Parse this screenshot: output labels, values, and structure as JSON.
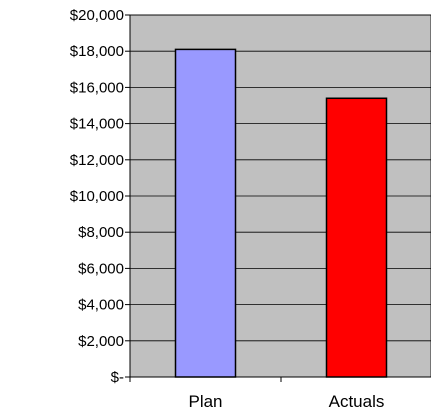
{
  "chart_data": {
    "type": "bar",
    "title": "",
    "xlabel": "",
    "ylabel": "",
    "categories": [
      "Plan",
      "Actuals"
    ],
    "values": [
      18100,
      15400
    ],
    "ylim": [
      0,
      20000
    ],
    "y_ticks": [
      0,
      2000,
      4000,
      6000,
      8000,
      10000,
      12000,
      14000,
      16000,
      18000,
      20000
    ],
    "y_tick_labels": [
      "$-",
      "$2,000",
      "$4,000",
      "$6,000",
      "$8,000",
      "$10,000",
      "$12,000",
      "$14,000",
      "$16,000",
      "$18,000",
      "$20,000"
    ],
    "grid": true,
    "legend": false,
    "colors": {
      "plot_background": "#c0c0c0",
      "bars": [
        "#9999ff",
        "#ff0000"
      ],
      "bar_outline": "#000000",
      "gridline": "#000000"
    }
  }
}
